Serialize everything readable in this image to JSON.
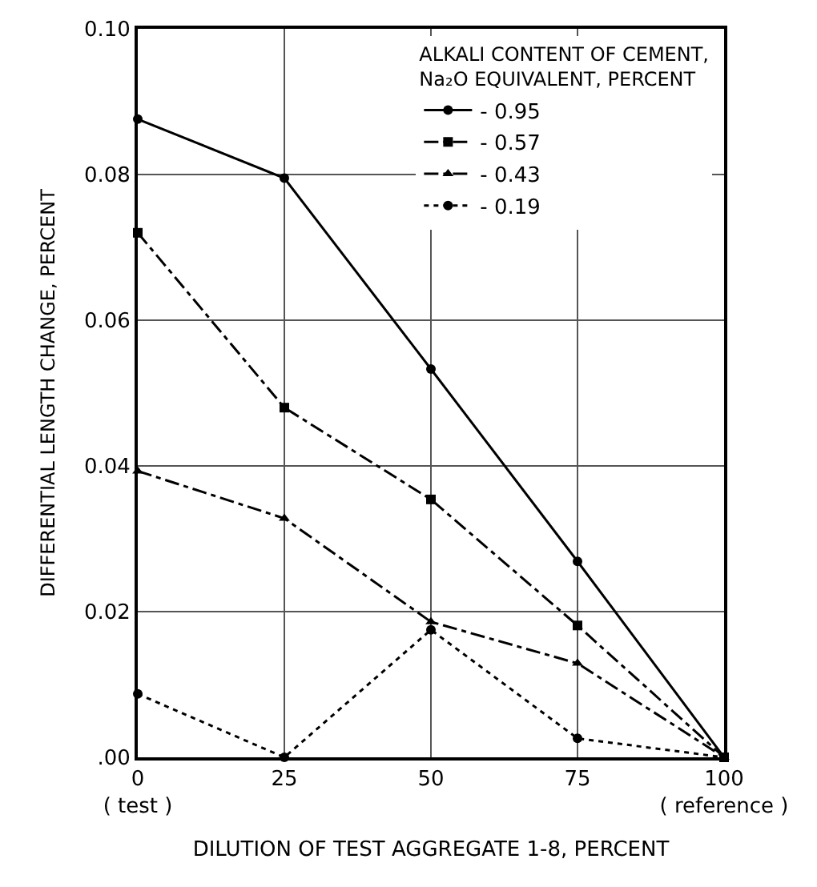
{
  "chart_data": {
    "type": "line",
    "xlabel": "DILUTION OF TEST AGGREGATE 1-8, PERCENT",
    "ylabel": "DIFFERENTIAL LENGTH CHANGE, PERCENT",
    "legend_title": "ALKALI CONTENT OF CEMENT,\nNa₂O EQUIVALENT, PERCENT",
    "x": [
      0,
      25,
      50,
      75,
      100
    ],
    "series": [
      {
        "name": "- 0.95",
        "color": "#000000",
        "marker": "circle",
        "line_style": "solid",
        "values": [
          0.0876,
          0.0795,
          0.0533,
          0.0269,
          0
        ]
      },
      {
        "name": "- 0.57",
        "color": "#000000",
        "marker": "square",
        "line_style": "dashed",
        "values": [
          0.072,
          0.048,
          0.0354,
          0.0181,
          0
        ]
      },
      {
        "name": "- 0.43",
        "color": "#000000",
        "marker": "triangle",
        "line_style": "dashed",
        "values": [
          0.0393,
          0.0328,
          0.0186,
          0.0129,
          0
        ]
      },
      {
        "name": "- 0.19",
        "color": "#000000",
        "marker": "circle",
        "line_style": "dotted",
        "values": [
          0.0087,
          0,
          0.0175,
          0.0026,
          0
        ]
      }
    ],
    "xlim": [
      0,
      100
    ],
    "xticks": [
      {
        "value": 0,
        "label": "0\n( test )"
      },
      25,
      50,
      75,
      {
        "value": 100,
        "label": "100\n( reference )"
      }
    ],
    "ylim": [
      0,
      0.1
    ],
    "yticks": [
      {
        "value": 0,
        "label": ".00"
      },
      0.02,
      0.04,
      0.06,
      0.08,
      {
        "value": 0.1,
        "label": "0.10"
      }
    ],
    "grid": true,
    "legend": "top right"
  }
}
